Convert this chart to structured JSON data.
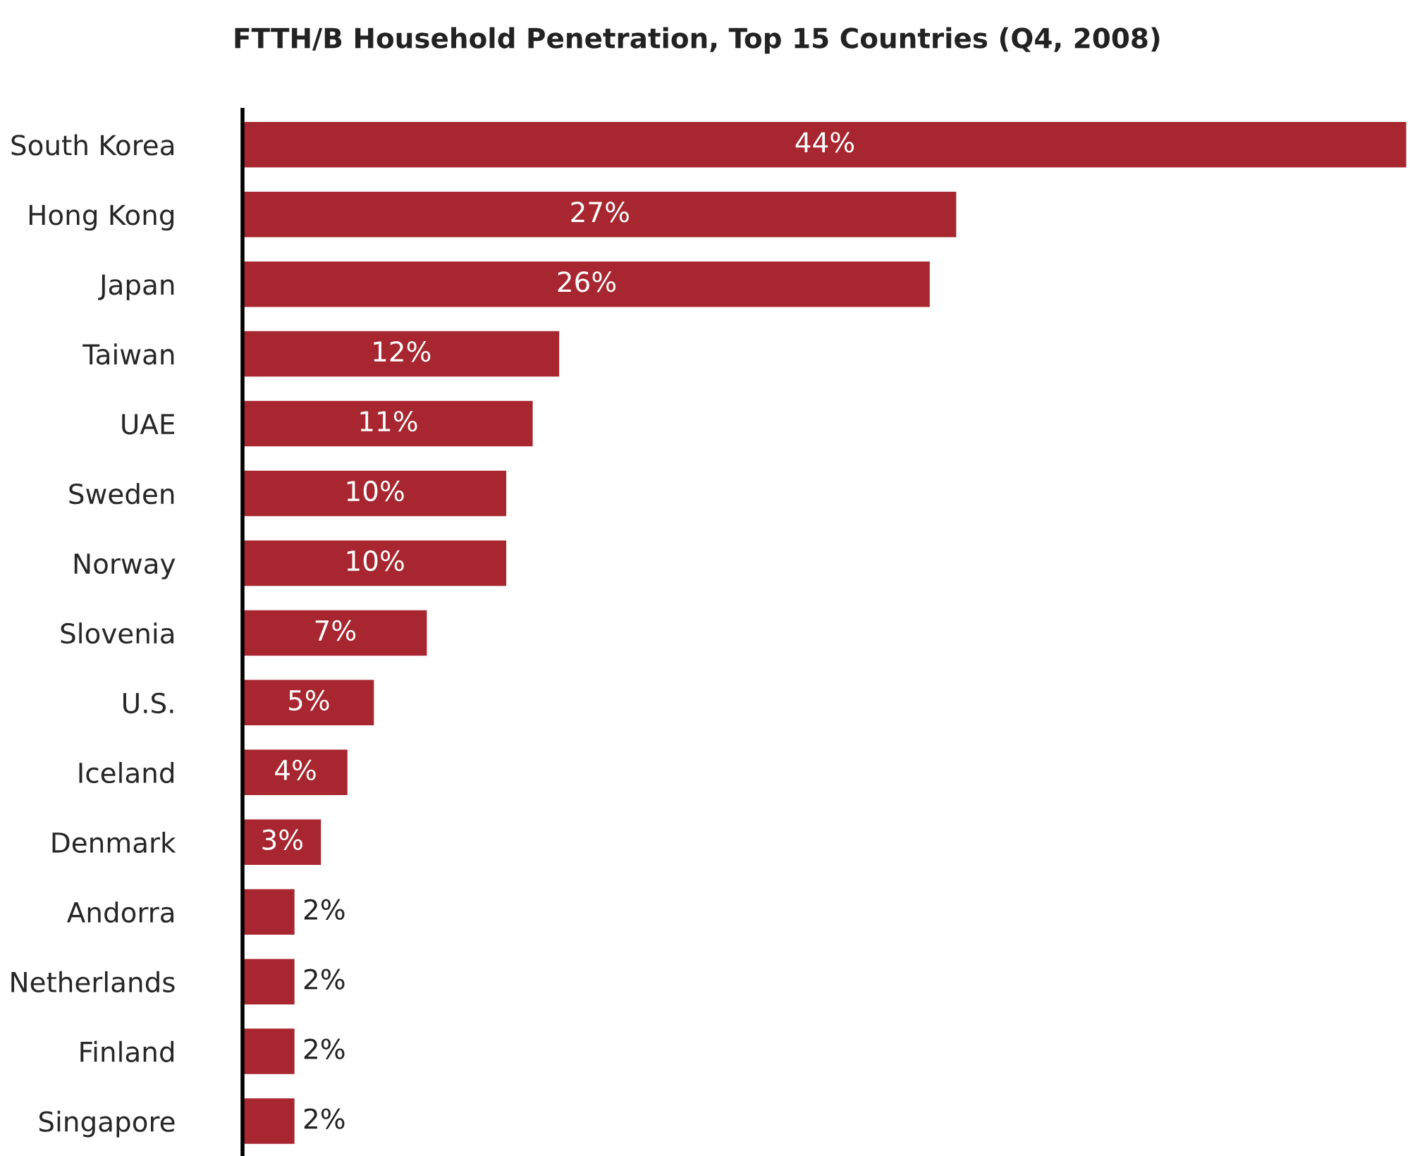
{
  "chart_data": {
    "type": "bar",
    "orientation": "horizontal",
    "title": "FTTH/B Household Penetration, Top 15 Countries (Q4, 2008)",
    "categories": [
      "South Korea",
      "Hong Kong",
      "Japan",
      "Taiwan",
      "UAE",
      "Sweden",
      "Norway",
      "Slovenia",
      "U.S.",
      "Iceland",
      "Denmark",
      "Andorra",
      "Netherlands",
      "Finland",
      "Singapore"
    ],
    "values": [
      44,
      27,
      26,
      12,
      11,
      10,
      10,
      7,
      5,
      4,
      3,
      2,
      2,
      2,
      2
    ],
    "value_labels": [
      "44%",
      "27%",
      "26%",
      "12%",
      "11%",
      "10%",
      "10%",
      "7%",
      "5%",
      "4%",
      "3%",
      "2%",
      "2%",
      "2%",
      "2%"
    ],
    "color": "#a8262f",
    "tick_labels": "y",
    "grid": false,
    "legend": false
  }
}
